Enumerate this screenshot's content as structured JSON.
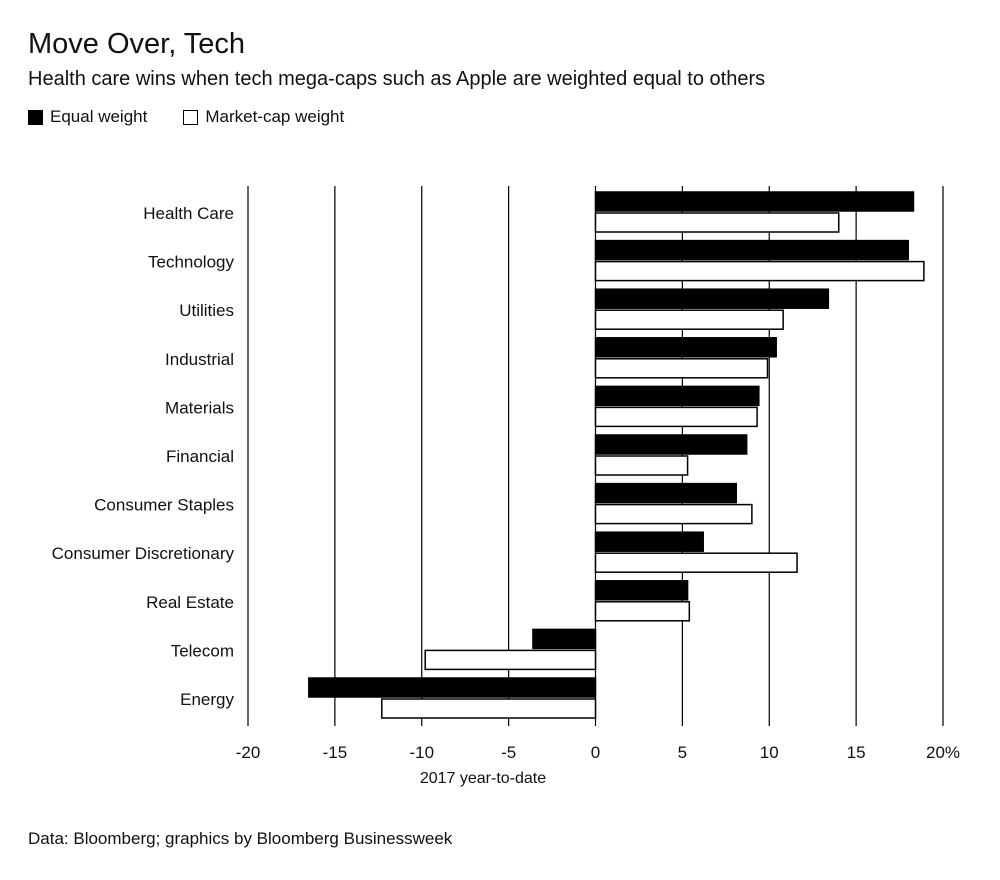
{
  "title": "Move Over, Tech",
  "subtitle": "Health care wins when tech mega-caps such as Apple are weighted equal to others",
  "legend": {
    "equal_label": "Equal weight",
    "market_label": "Market-cap weight"
  },
  "source": "Data: Bloomberg; graphics by Bloomberg Businessweek",
  "colors": {
    "equal": "#000000",
    "market": "#ffffff",
    "stroke": "#000000"
  },
  "chart_data": {
    "type": "bar",
    "orientation": "horizontal",
    "categories": [
      "Health Care",
      "Technology",
      "Utilities",
      "Industrial",
      "Materials",
      "Financial",
      "Consumer Staples",
      "Consumer Discretionary",
      "Real Estate",
      "Telecom",
      "Energy"
    ],
    "series": [
      {
        "name": "Equal weight",
        "values": [
          18.3,
          18.0,
          13.4,
          10.4,
          9.4,
          8.7,
          8.1,
          6.2,
          5.3,
          -3.6,
          -16.5
        ]
      },
      {
        "name": "Market-cap weight",
        "values": [
          14.0,
          18.9,
          10.8,
          9.9,
          9.3,
          5.3,
          9.0,
          11.6,
          5.4,
          -9.8,
          -12.3
        ]
      }
    ],
    "xlim": [
      -20,
      20
    ],
    "xticks": [
      -20,
      -15,
      -10,
      -5,
      0,
      5,
      10,
      15,
      20
    ],
    "xtick_labels": [
      "-20",
      "-15",
      "-10",
      "-5",
      "0",
      "5",
      "10",
      "15",
      "20%"
    ],
    "xlabel": "2017 year-to-date",
    "ylabel": "",
    "grid": "vertical"
  }
}
